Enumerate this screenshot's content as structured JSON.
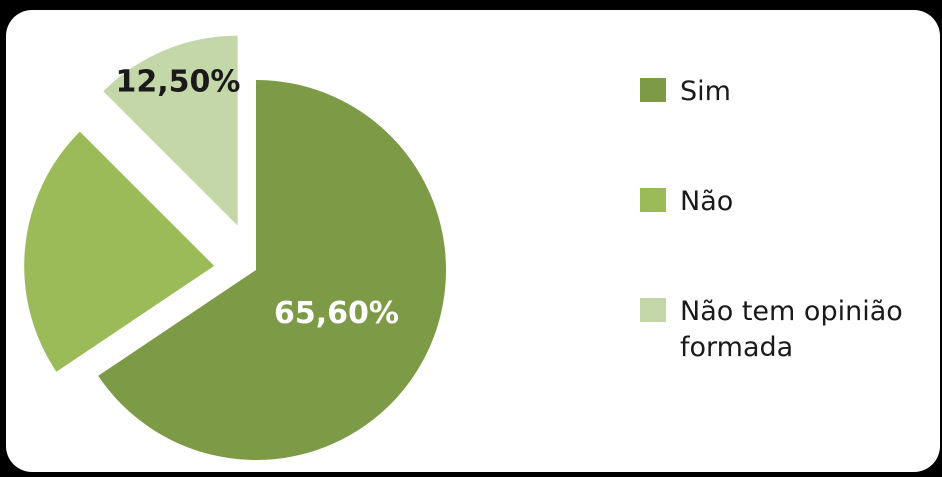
{
  "chart_data": {
    "type": "pie",
    "exploded": true,
    "categories": [
      "Sim",
      "Não",
      "Não tem opinião formada"
    ],
    "values": [
      65.6,
      21.9,
      12.5
    ],
    "data_labels": [
      "65,60%",
      "",
      "12,50%"
    ],
    "colors": [
      "#7d9a47",
      "#9bbb59",
      "#c4d7a8"
    ],
    "label_colors": [
      "#ffffff",
      "#ffffff",
      "#1a1a1a"
    ],
    "legend": {
      "position": "right",
      "entries": [
        {
          "lines": [
            "Sim"
          ]
        },
        {
          "lines": [
            "Não"
          ]
        },
        {
          "lines": [
            "Não tem opinião",
            "formada"
          ]
        }
      ]
    }
  }
}
